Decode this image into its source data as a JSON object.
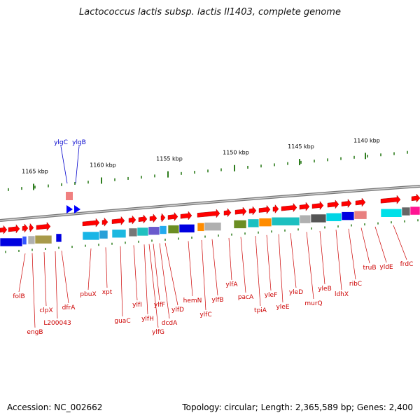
{
  "title": "Lactococcus lactis subsp. lactis Il1403, complete genome",
  "accession": "Accession: NC_002662",
  "summary": "Topology: circular; Length: 2,365,589 bp; Genes: 2,400",
  "colors": {
    "forward": "#ff0000",
    "reverse_label": "#0000cc",
    "tick": "#2e7d1e",
    "label": "#cc0000",
    "backbone": "#888888"
  },
  "ruler": [
    {
      "label": "1165 kbp"
    },
    {
      "label": "1160 kbp"
    },
    {
      "label": "1155 kbp"
    },
    {
      "label": "1150 kbp"
    },
    {
      "label": "1145 kbp"
    },
    {
      "label": "1140 kbp"
    }
  ],
  "top_labels": [
    "ylgC",
    "ylgB"
  ],
  "bottom_labels": [
    "folB",
    "engB",
    "clpX",
    "L200043",
    "dfrA",
    "pbuX",
    "xpt",
    "guaC",
    "ylfI",
    "ylfH",
    "ylfG",
    "ylfF",
    "dcdA",
    "ylfD",
    "hemN",
    "ylfC",
    "ylfB",
    "ylfA",
    "pacA",
    "tpiA",
    "yleF",
    "yleE",
    "yleD",
    "murQ",
    "yleB",
    "ldhX",
    "ribC",
    "truB",
    "yldE",
    "frdC"
  ]
}
